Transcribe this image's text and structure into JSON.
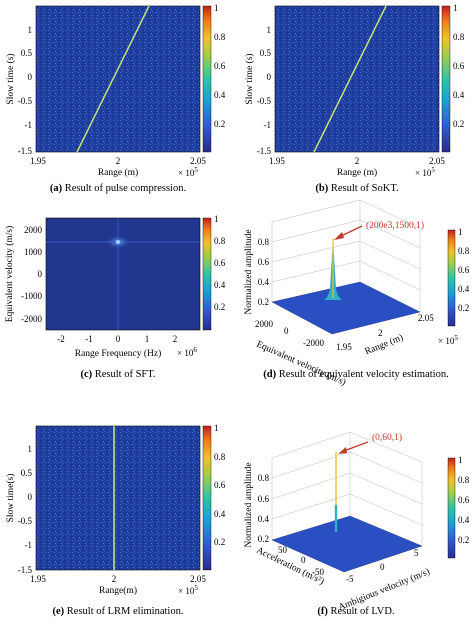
{
  "chart_data": [
    {
      "id": "a",
      "type": "heatmap",
      "caption_letter": "(a)",
      "caption_text": " Result of pulse compression.",
      "xlabel": "Range (m)",
      "ylabel": "Slow time (s)",
      "xticks": [
        "1.95",
        "2",
        "2.05"
      ],
      "x_exponent": "× 10",
      "x_exponent_power": "5",
      "yticks": [
        "1",
        "0.5",
        "0",
        "-0.5",
        "-1",
        "-1.5"
      ],
      "xlim": [
        195000,
        205000
      ],
      "ylim": [
        -1.5,
        1.5
      ],
      "colorbar_ticks": [
        "1",
        "0.8",
        "0.6",
        "0.4",
        "0.2"
      ],
      "line_x_range": [
        197600,
        202600
      ]
    },
    {
      "id": "b",
      "type": "heatmap",
      "caption_letter": "(b)",
      "caption_text": " Result of SoKT.",
      "xlabel": "Range (m)",
      "ylabel": "Slow time (s)",
      "xticks": [
        "1.95",
        "2",
        "2.05"
      ],
      "x_exponent": "× 10",
      "x_exponent_power": "5",
      "yticks": [
        "1",
        "0.5",
        "0",
        "-0.5",
        "-1",
        "-1.5"
      ],
      "xlim": [
        195000,
        205000
      ],
      "ylim": [
        -1.5,
        1.5
      ],
      "colorbar_ticks": [
        "1",
        "0.8",
        "0.6",
        "0.4",
        "0.2"
      ],
      "line_x_range": [
        197500,
        202600
      ]
    },
    {
      "id": "c",
      "type": "heatmap",
      "caption_letter": "(c)",
      "caption_text": " Result of SFT.",
      "xlabel": "Range Frequency (Hz)",
      "ylabel": "Equivalent velocity (m/s)",
      "xticks": [
        "-2",
        "-1",
        "0",
        "1",
        "2"
      ],
      "x_exponent": "× 10",
      "x_exponent_power": "6",
      "yticks": [
        "2000",
        "1000",
        "0",
        "-1000",
        "-2000"
      ],
      "xlim": [
        -2.7,
        2.7
      ],
      "ylim": [
        -2500,
        2500
      ],
      "colorbar_ticks": [
        "1",
        "0.8",
        "0.6",
        "0.4",
        "0.2"
      ],
      "peak": {
        "x": 0,
        "y": 1500
      }
    },
    {
      "id": "d",
      "type": "surface3d",
      "caption_letter": "(d)",
      "caption_text": " Result of equivalent velocity estimation.",
      "zlabel": "Normalized amplitude",
      "ylabel": "Equivalent velocity (m/s)",
      "xlabel": "Range (m)",
      "zticks": [
        "0.8",
        "0.6",
        "0.4",
        "0.2"
      ],
      "velocity_ticks": [
        "2000",
        "0",
        "-2000"
      ],
      "range_ticks": [
        "1.95",
        "2",
        "2.05"
      ],
      "x_exponent": "× 10",
      "x_exponent_power": "5",
      "colorbar_ticks": [
        "1",
        "0.8",
        "0.6",
        "0.4",
        "0.2"
      ],
      "peak_label": "(200e3,1500,1)",
      "peak": {
        "range": 200000,
        "velocity": 1500,
        "amplitude": 1
      }
    },
    {
      "id": "e",
      "type": "heatmap",
      "caption_letter": "(e)",
      "caption_text": " Result of LRM elimination.",
      "xlabel": "Range(m)",
      "ylabel": "Slow time(s)",
      "xticks": [
        "1.95",
        "2",
        "2.05"
      ],
      "x_exponent": "× 10",
      "x_exponent_power": "5",
      "yticks": [
        "1",
        "0.5",
        "0",
        "-0.5",
        "-1",
        "-1.5"
      ],
      "xlim": [
        195000,
        205000
      ],
      "ylim": [
        -1.5,
        1.5
      ],
      "colorbar_ticks": [
        "1",
        "0.8",
        "0.6",
        "0.4",
        "0.2"
      ],
      "line_x_range": [
        200000,
        200000
      ]
    },
    {
      "id": "f",
      "type": "surface3d",
      "caption_letter": "(f)",
      "caption_text": " Result of LVD.",
      "zlabel": "Normalized amplitude",
      "ylabel": "Acceleration (m/s²)",
      "xlabel": "Ambigious velocity (m/s)",
      "zticks": [
        "0.8",
        "0.6",
        "0.4",
        "0.2"
      ],
      "acc_ticks": [
        "50",
        "0",
        "-50"
      ],
      "vel_ticks": [
        "-5",
        "0",
        "5"
      ],
      "colorbar_ticks": [
        "1",
        "0.8",
        "0.6",
        "0.4",
        "0.2"
      ],
      "peak_label": "(0,60,1)",
      "peak": {
        "velocity": 0,
        "acceleration": 60,
        "amplitude": 1
      }
    }
  ],
  "colors": {
    "map_background": "#1f3e9c",
    "line": "#c7e07a",
    "peak_label": "#c0392b",
    "colormap": [
      "#2b2b8f",
      "#2f5bd6",
      "#1aa0d6",
      "#2fc4a5",
      "#9bcf4a",
      "#f2c02a",
      "#f07a1a",
      "#c21f1f"
    ]
  }
}
